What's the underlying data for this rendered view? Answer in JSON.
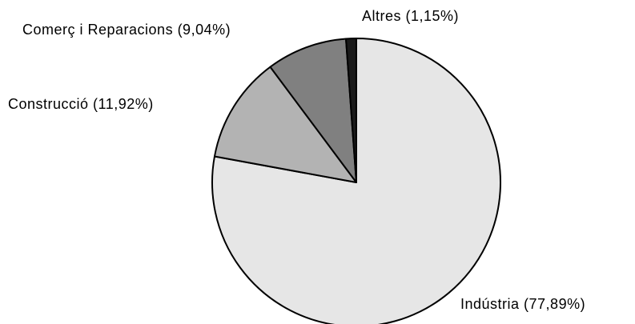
{
  "chart_data": {
    "type": "pie",
    "categories": [
      "Indústria (77,89%)",
      "Construcció (11,92%)",
      "Comerç i Reparacions (9,04%)",
      "Altres (1,15%)"
    ],
    "values": [
      77.89,
      11.92,
      9.04,
      1.15
    ],
    "colors": [
      "#e6e6e6",
      "#b3b3b3",
      "#808080",
      "#1a1a1a"
    ]
  }
}
